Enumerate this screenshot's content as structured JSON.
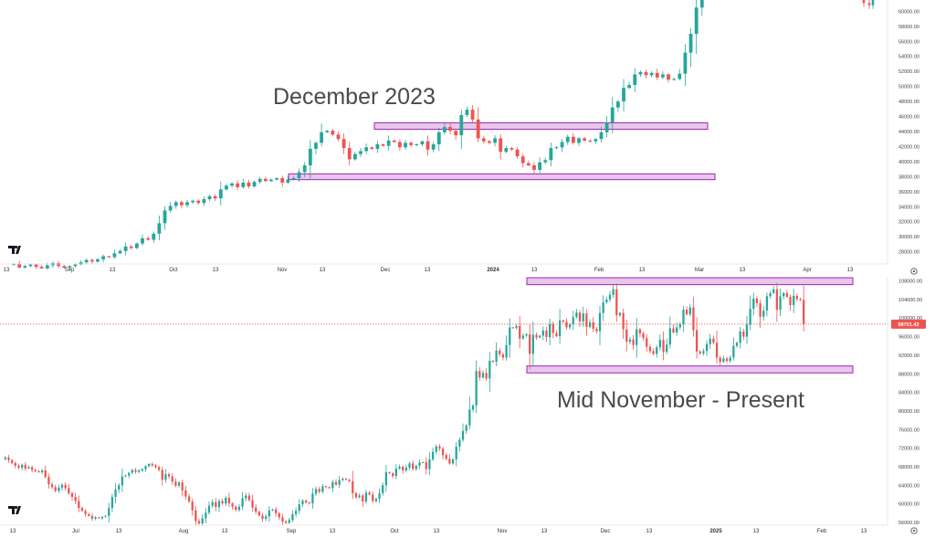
{
  "annotations": {
    "top": "December 2023",
    "bottom": "Mid November - Present"
  },
  "colors": {
    "up": "#26a69a",
    "down": "#ef5350",
    "zone_fill": "#e9c6ec",
    "zone_stroke": "#9c27b0",
    "price_line": "#ef5350"
  },
  "icons": [
    "tradingview-logo-icon",
    "settings-icon"
  ],
  "chart_data": [
    {
      "type": "candlestick",
      "title": "",
      "ylim": [
        26500,
        61500
      ],
      "y_ticks": [
        "28000.00",
        "30000.00",
        "32000.00",
        "34000.00",
        "36000.00",
        "38000.00",
        "40000.00",
        "42000.00",
        "44000.00",
        "46000.00",
        "48000.00",
        "50000.00",
        "52000.00",
        "54000.00",
        "56000.00",
        "58000.00",
        "60000.00"
      ],
      "x_ticks": [
        {
          "label": "13",
          "bold": false
        },
        {
          "label": "Sep",
          "bold": false
        },
        {
          "label": "13",
          "bold": false
        },
        {
          "label": "Oct",
          "bold": false
        },
        {
          "label": "13",
          "bold": false
        },
        {
          "label": "Nov",
          "bold": false
        },
        {
          "label": "13",
          "bold": false
        },
        {
          "label": "Dec",
          "bold": false
        },
        {
          "label": "13",
          "bold": false
        },
        {
          "label": "2024",
          "bold": true
        },
        {
          "label": "13",
          "bold": false
        },
        {
          "label": "Feb",
          "bold": false
        },
        {
          "label": "13",
          "bold": false
        },
        {
          "label": "Mar",
          "bold": false
        },
        {
          "label": "13",
          "bold": false
        },
        {
          "label": "Apr",
          "bold": false
        },
        {
          "label": "13",
          "bold": false
        }
      ],
      "zones": [
        {
          "from": "Dec 2023",
          "to": "Mar 2024",
          "low": 44300,
          "high": 44800
        },
        {
          "from": "Nov 2023",
          "to": "Mar 2024",
          "low": 37600,
          "high": 38000
        }
      ],
      "closes": [
        26400,
        25900,
        26100,
        26300,
        26000,
        25800,
        26200,
        26500,
        26100,
        25900,
        26100,
        26300,
        26600,
        26900,
        26700,
        27000,
        27400,
        27300,
        27800,
        28100,
        28700,
        28500,
        29100,
        29800,
        29600,
        30400,
        31800,
        33500,
        34100,
        34600,
        34200,
        34600,
        34800,
        34500,
        35000,
        35400,
        35100,
        36300,
        36800,
        37100,
        36600,
        37200,
        36700,
        37300,
        37700,
        37400,
        37600,
        37800,
        37200,
        37600,
        37800,
        38600,
        39500,
        41700,
        42500,
        43900,
        44100,
        43600,
        43000,
        41800,
        40300,
        41000,
        41400,
        41900,
        41700,
        42300,
        42100,
        42800,
        42600,
        41900,
        42500,
        42200,
        42300,
        42700,
        41600,
        42300,
        43900,
        44600,
        44100,
        43500,
        46200,
        46900,
        45600,
        43100,
        42700,
        42500,
        43100,
        41300,
        41800,
        41600,
        40700,
        39800,
        39500,
        38900,
        39900,
        40200,
        41800,
        41900,
        42600,
        43300,
        42500,
        43100,
        42800,
        42700,
        43000,
        43900,
        45200,
        47200,
        48000,
        49800,
        50200,
        51600,
        51900,
        51500,
        51800,
        51200,
        51600,
        50900,
        51000,
        51700,
        54500,
        57000,
        60500,
        62000,
        63000
      ],
      "closes_right": [
        63400,
        62200,
        61100,
        60800,
        62100
      ]
    },
    {
      "type": "candlestick",
      "title": "",
      "ylim": [
        55600,
        108700
      ],
      "current_price_label": "98701.43",
      "current_price": 98701.43,
      "y_ticks": [
        "56000.00",
        "60000.00",
        "64000.00",
        "68000.00",
        "72000.00",
        "76000.00",
        "80000.00",
        "84000.00",
        "88000.00",
        "92000.00",
        "96000.00",
        "100000.00",
        "104000.00",
        "108000.00"
      ],
      "x_ticks": [
        {
          "label": "13",
          "bold": false
        },
        {
          "label": "Jul",
          "bold": false
        },
        {
          "label": "13",
          "bold": false
        },
        {
          "label": "Aug",
          "bold": false
        },
        {
          "label": "13",
          "bold": false
        },
        {
          "label": "Sep",
          "bold": false
        },
        {
          "label": "13",
          "bold": false
        },
        {
          "label": "Oct",
          "bold": false
        },
        {
          "label": "13",
          "bold": false
        },
        {
          "label": "Nov",
          "bold": false
        },
        {
          "label": "13",
          "bold": false
        },
        {
          "label": "Dec",
          "bold": false
        },
        {
          "label": "13",
          "bold": false
        },
        {
          "label": "2025",
          "bold": true
        },
        {
          "label": "13",
          "bold": false
        },
        {
          "label": "Feb",
          "bold": false
        },
        {
          "label": "13",
          "bold": false
        }
      ],
      "zones": [
        {
          "from": "Nov 2024",
          "to": "Feb 2025",
          "low": 107200,
          "high": 108100
        },
        {
          "from": "Nov 2024",
          "to": "Feb 2025",
          "low": 88200,
          "high": 89100
        }
      ],
      "closes": [
        70000,
        69400,
        68800,
        68200,
        67800,
        68400,
        67600,
        67900,
        67300,
        67000,
        66800,
        67200,
        65800,
        64200,
        63600,
        62800,
        63500,
        64100,
        63400,
        62300,
        61500,
        60600,
        59100,
        58500,
        57800,
        57400,
        56800,
        57100,
        56900,
        57200,
        57400,
        59100,
        61500,
        63100,
        64000,
        65900,
        66100,
        66700,
        67300,
        66900,
        67200,
        67500,
        68100,
        68600,
        68300,
        67900,
        67300,
        65200,
        66400,
        65900,
        64800,
        63900,
        64600,
        62900,
        61600,
        60500,
        58600,
        56300,
        55800,
        56900,
        58100,
        59600,
        60400,
        59300,
        60600,
        60100,
        61300,
        60100,
        59400,
        58700,
        59400,
        61200,
        61800,
        60800,
        59200,
        58300,
        57500,
        56800,
        57300,
        58600,
        58800,
        58000,
        57100,
        56200,
        55900,
        56500,
        57800,
        58500,
        59900,
        60700,
        60300,
        60100,
        62200,
        63200,
        62600,
        63800,
        63600,
        63400,
        64700,
        64100,
        65100,
        65400,
        65200,
        64900,
        62300,
        61400,
        61800,
        60500,
        62400,
        62000,
        60600,
        61100,
        62300,
        64000,
        66800,
        66600,
        66000,
        67600,
        68000,
        67200,
        67800,
        68700,
        67500,
        68200,
        68900,
        69000,
        67500,
        69600,
        71200,
        72400,
        71900,
        70500,
        69700,
        68700,
        69600,
        72300,
        73800,
        75700,
        76900,
        80300,
        81200,
        88600,
        87200,
        88200,
        87000,
        90800,
        90600,
        93000,
        92200,
        91500,
        94200,
        98000,
        97900,
        98300,
        95600,
        96200,
        96500,
        92300,
        96400,
        95800,
        96200,
        97300,
        95900,
        98700,
        96800,
        96100,
        99500,
        99200,
        98000,
        98600,
        100200,
        101200,
        99300,
        101000,
        98100,
        99100,
        97700,
        97200,
        101100,
        103400,
        104000,
        105000,
        106200,
        100600,
        101100,
        97600,
        94900,
        95400,
        94200,
        97600,
        96700,
        95700,
        93800,
        92900,
        92300,
        93700,
        95300,
        92700,
        94300,
        97800,
        96900,
        98000,
        98700,
        101800,
        100800,
        102300,
        97400,
        92800,
        92400,
        92900,
        94400,
        95600,
        94700,
        91500,
        90600,
        91300,
        90800,
        91500,
        94000,
        94700,
        97100,
        96000,
        98600,
        102000,
        104200,
        103200,
        100300,
        101600,
        104700,
        105400,
        106200,
        101800,
        104700,
        105400,
        104600,
        102800,
        104800,
        104100,
        103900,
        98700
      ]
    }
  ]
}
